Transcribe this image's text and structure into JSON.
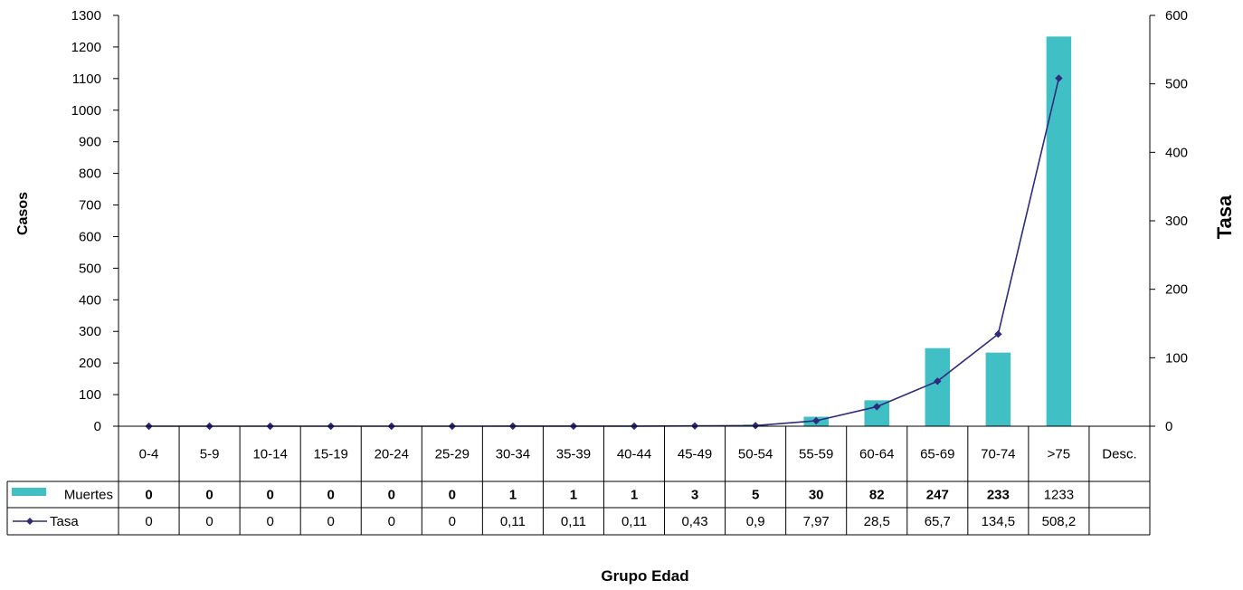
{
  "chart_data": {
    "type": "bar+line",
    "categories": [
      "0-4",
      "5-9",
      "10-14",
      "15-19",
      "20-24",
      "25-29",
      "30-34",
      "35-39",
      "40-44",
      "45-49",
      "50-54",
      "55-59",
      "60-64",
      "65-69",
      "70-74",
      ">75",
      "Desc."
    ],
    "series": [
      {
        "name": "Muertes",
        "type": "bar",
        "axis": "left",
        "color": "#40C0C4",
        "values": [
          0,
          0,
          0,
          0,
          0,
          0,
          1,
          1,
          1,
          3,
          5,
          30,
          82,
          247,
          233,
          1233,
          null
        ],
        "table_labels": [
          "0",
          "0",
          "0",
          "0",
          "0",
          "0",
          "1",
          "1",
          "1",
          "3",
          "5",
          "30",
          "82",
          "247",
          "233",
          "1233",
          ""
        ]
      },
      {
        "name": "Tasa",
        "type": "line",
        "axis": "right",
        "color": "#2E2A7E",
        "marker": "diamond",
        "values": [
          0,
          0,
          0,
          0,
          0,
          0,
          0.11,
          0.11,
          0.11,
          0.43,
          0.9,
          7.97,
          28.5,
          65.7,
          134.5,
          508.2,
          null
        ],
        "table_labels": [
          "0",
          "0",
          "0",
          "0",
          "0",
          "0",
          "0,11",
          "0,11",
          "0,11",
          "0,43",
          "0,9",
          "7,97",
          "28,5",
          "65,7",
          "134,5",
          "508,2",
          ""
        ]
      }
    ],
    "ylabel_left": "Casos",
    "ylabel_right": "Tasa",
    "xlabel": "Grupo Edad",
    "ylim_left": [
      0,
      1300
    ],
    "yticks_left": [
      0,
      100,
      200,
      300,
      400,
      500,
      600,
      700,
      800,
      900,
      1000,
      1100,
      1200,
      1300
    ],
    "ylim_right": [
      0,
      600
    ],
    "yticks_right": [
      0,
      100,
      200,
      300,
      400,
      500,
      600
    ],
    "grid": false,
    "legend": "data-table"
  }
}
